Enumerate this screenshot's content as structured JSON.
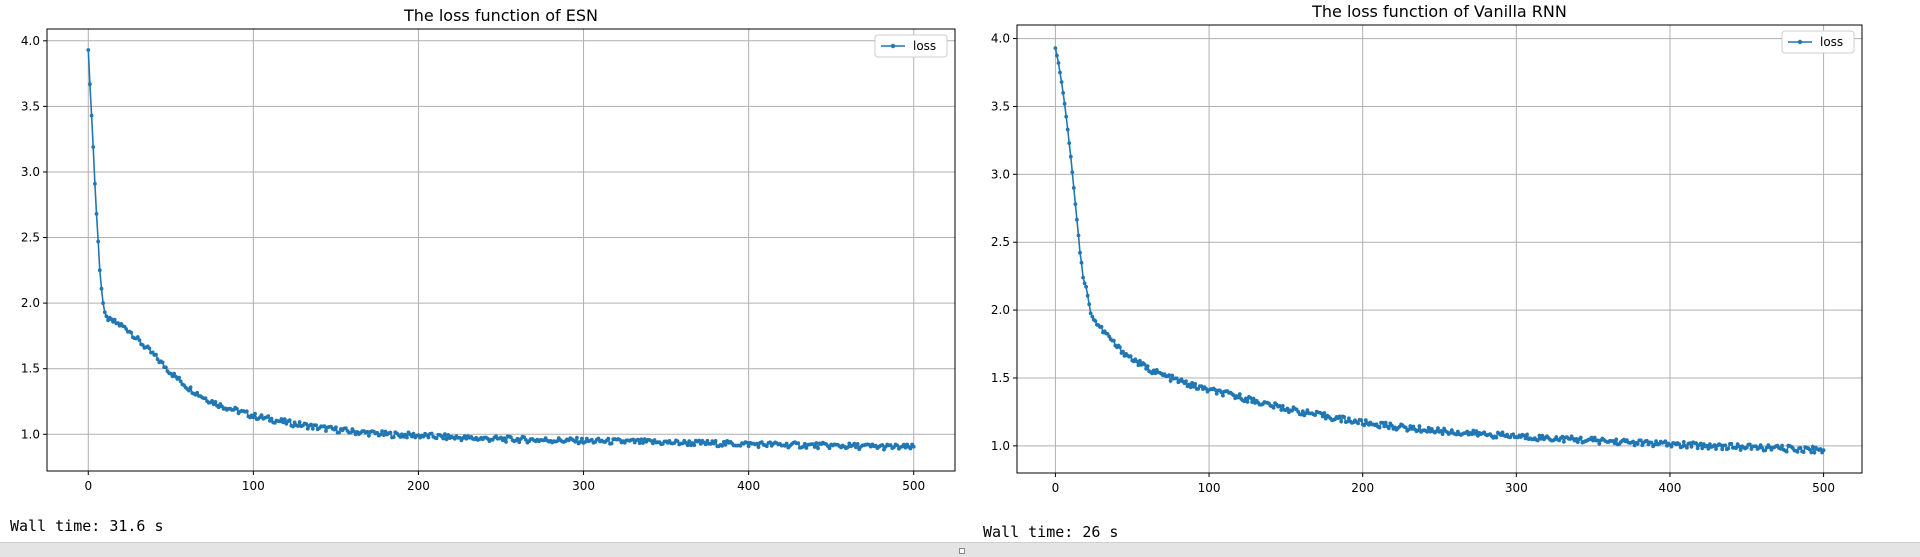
{
  "colors": {
    "series": "#1f77b4",
    "grid": "#b0b0b0",
    "axes": "#000000"
  },
  "walltime_left": "Wall time: 31.6 s",
  "walltime_right": "Wall time: 26 s",
  "chart_data": [
    {
      "type": "line",
      "title": "The loss function of ESN",
      "xlabel": "",
      "ylabel": "",
      "xlim": [
        -25,
        525
      ],
      "ylim": [
        0.72,
        4.09
      ],
      "xticks": [
        0,
        100,
        200,
        300,
        400,
        500
      ],
      "yticks": [
        1.0,
        1.5,
        2.0,
        2.5,
        3.0,
        3.5,
        4.0
      ],
      "grid": true,
      "legend": "top-right",
      "series": [
        {
          "name": "loss",
          "marker": "dot",
          "x": [
            0,
            1,
            2,
            3,
            4,
            5,
            6,
            7,
            8,
            9,
            10,
            12,
            15,
            20,
            25,
            30,
            40,
            50,
            60,
            70,
            80,
            90,
            100,
            120,
            140,
            160,
            180,
            200,
            230,
            260,
            300,
            340,
            380,
            420,
            460,
            500
          ],
          "y": [
            3.93,
            3.67,
            3.43,
            3.19,
            2.91,
            2.68,
            2.47,
            2.25,
            2.11,
            2.0,
            1.93,
            1.87,
            1.86,
            1.83,
            1.79,
            1.72,
            1.6,
            1.47,
            1.36,
            1.28,
            1.22,
            1.18,
            1.14,
            1.09,
            1.05,
            1.02,
            1.0,
            0.99,
            0.97,
            0.96,
            0.95,
            0.94,
            0.93,
            0.92,
            0.91,
            0.9
          ]
        }
      ]
    },
    {
      "type": "line",
      "title": "The loss function of Vanilla RNN",
      "xlabel": "",
      "ylabel": "",
      "xlim": [
        -25,
        525
      ],
      "ylim": [
        0.8,
        4.1
      ],
      "xticks": [
        0,
        100,
        200,
        300,
        400,
        500
      ],
      "yticks": [
        1.0,
        1.5,
        2.0,
        2.5,
        3.0,
        3.5,
        4.0
      ],
      "grid": true,
      "legend": "top-right",
      "series": [
        {
          "name": "loss",
          "marker": "dot",
          "x": [
            0,
            2,
            4,
            6,
            8,
            10,
            12,
            14,
            16,
            18,
            20,
            22,
            25,
            30,
            35,
            40,
            50,
            60,
            70,
            80,
            90,
            100,
            120,
            140,
            160,
            180,
            200,
            230,
            260,
            300,
            350,
            400,
            450,
            500
          ],
          "y": [
            3.93,
            3.82,
            3.68,
            3.52,
            3.33,
            3.13,
            2.9,
            2.68,
            2.43,
            2.25,
            2.16,
            2.03,
            1.93,
            1.86,
            1.8,
            1.73,
            1.64,
            1.57,
            1.52,
            1.48,
            1.44,
            1.41,
            1.36,
            1.3,
            1.25,
            1.21,
            1.17,
            1.13,
            1.1,
            1.07,
            1.04,
            1.01,
            0.99,
            0.97
          ]
        }
      ]
    }
  ]
}
